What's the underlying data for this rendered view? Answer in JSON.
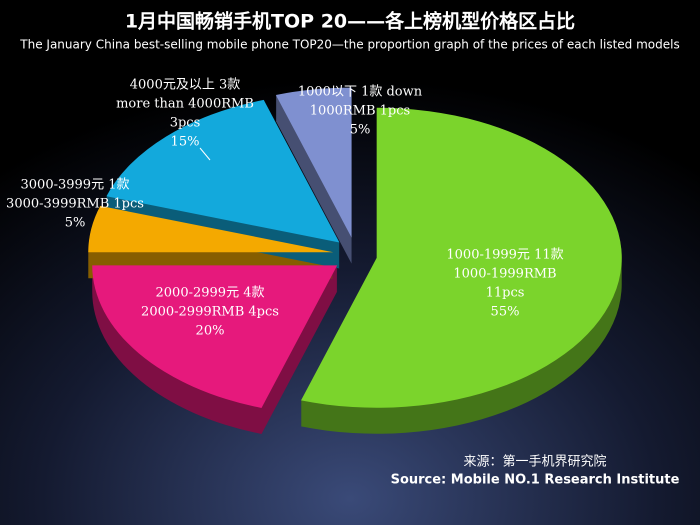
{
  "chart_data": {
    "type": "pie",
    "title": "1月中国畅销手机TOP 20——各上榜机型价格区占比",
    "subtitle": "The  January China best-selling mobile phone TOP20—the proportion graph of the prices of each listed models",
    "categories": [
      "1000以下 1款 down",
      "1000-1999元 11款",
      "2000-2999元 4款",
      "3000-3999元 1款",
      "4000元及以上 3款"
    ],
    "label_lines": [
      [
        "1000RMB 1pcs"
      ],
      [
        "1000-1999RMB",
        "11pcs"
      ],
      [
        "2000-2999RMB 4pcs"
      ],
      [
        "3000-3999RMB 1pcs"
      ],
      [
        "more than 4000RMB",
        "3pcs"
      ]
    ],
    "values": [
      5,
      55,
      20,
      5,
      15
    ],
    "value_labels": [
      "5%",
      "55%",
      "20%",
      "5%",
      "15%"
    ],
    "colors": [
      "#7f90d0",
      "#7bd42c",
      "#e6197c",
      "#f4a900",
      "#13a9dc"
    ],
    "source": [
      "来源：第一手机界研究院",
      "Source: Mobile NO.1 Research Institute"
    ]
  }
}
